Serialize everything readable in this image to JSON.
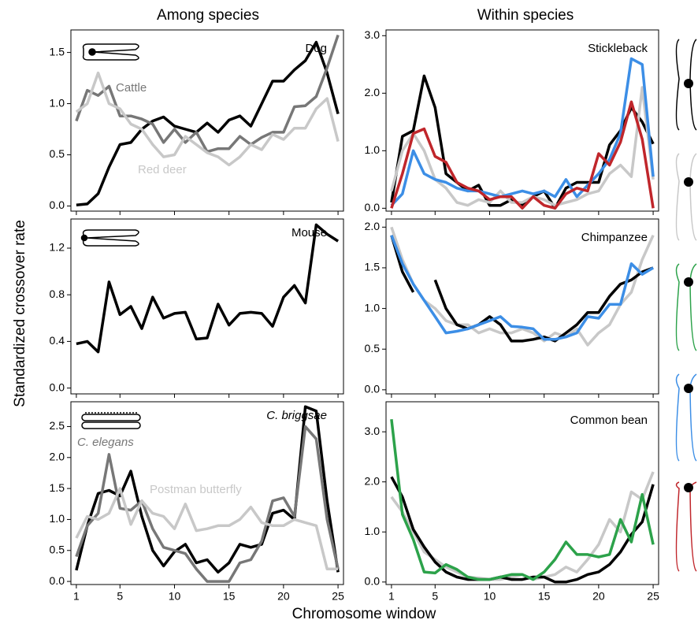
{
  "column_titles": [
    "Among species",
    "Within species"
  ],
  "y_label": "Standardized crossover rate",
  "x_label": "Chromosome window",
  "chart_data": [
    {
      "type": "line",
      "x": [
        1,
        2,
        3,
        4,
        5,
        6,
        7,
        8,
        9,
        10,
        11,
        12,
        13,
        14,
        15,
        16,
        17,
        18,
        19,
        20,
        21,
        22,
        23,
        24,
        25
      ],
      "xlim": [
        0.5,
        25.5
      ],
      "xticks": [
        1,
        5,
        10,
        15,
        20,
        25
      ],
      "ylim": [
        -0.05,
        1.72
      ],
      "yticks": [
        {
          "value": 0,
          "label": "0.0"
        },
        0.5,
        {
          "value": 1,
          "label": "1.0"
        },
        1.5
      ],
      "series": [
        {
          "name": "Dog",
          "color": "#000000",
          "values": [
            0.01,
            0.02,
            0.12,
            0.38,
            0.6,
            0.62,
            0.75,
            0.83,
            0.87,
            0.78,
            0.75,
            0.72,
            0.81,
            0.72,
            0.84,
            0.88,
            0.78,
            1.0,
            1.22,
            1.22,
            1.33,
            1.42,
            1.6,
            1.3,
            0.9
          ]
        },
        {
          "name": "Cattle",
          "color": "#777777",
          "values": [
            0.83,
            1.13,
            1.08,
            1.17,
            0.88,
            0.88,
            0.85,
            0.8,
            0.62,
            0.75,
            0.62,
            0.72,
            0.53,
            0.56,
            0.56,
            0.68,
            0.6,
            0.67,
            0.72,
            0.72,
            0.97,
            0.98,
            1.07,
            1.35,
            1.67
          ]
        },
        {
          "name": "Red deer",
          "color": "#c8c8c8",
          "values": [
            0.92,
            1.0,
            1.3,
            1.0,
            0.95,
            0.8,
            0.75,
            0.6,
            0.48,
            0.5,
            0.68,
            0.6,
            0.52,
            0.48,
            0.4,
            0.48,
            0.6,
            0.55,
            0.7,
            0.65,
            0.76,
            0.76,
            0.95,
            1.05,
            0.63
          ]
        }
      ]
    },
    {
      "type": "line",
      "x": [
        1,
        2,
        3,
        4,
        5,
        6,
        7,
        8,
        9,
        10,
        11,
        12,
        13,
        14,
        15,
        16,
        17,
        18,
        19,
        20,
        21,
        22,
        23,
        24,
        25
      ],
      "xlim": [
        0.5,
        25.5
      ],
      "xticks": [
        1,
        5,
        10,
        15,
        20,
        25
      ],
      "ylim": [
        -0.05,
        1.45
      ],
      "yticks": [
        {
          "value": 0,
          "label": "0.0"
        },
        0.4,
        0.8,
        1.2
      ],
      "series": [
        {
          "name": "Mouse",
          "color": "#000000",
          "values": [
            0.38,
            0.4,
            0.31,
            0.91,
            0.63,
            0.7,
            0.51,
            0.78,
            0.6,
            0.64,
            0.65,
            0.42,
            0.43,
            0.72,
            0.54,
            0.64,
            0.65,
            0.64,
            0.53,
            0.78,
            0.88,
            0.73,
            1.4,
            1.32,
            1.26
          ]
        }
      ]
    },
    {
      "type": "line",
      "x": [
        1,
        2,
        3,
        4,
        5,
        6,
        7,
        8,
        9,
        10,
        11,
        12,
        13,
        14,
        15,
        16,
        17,
        18,
        19,
        20,
        21,
        22,
        23,
        24,
        25
      ],
      "xlim": [
        0.5,
        25.5
      ],
      "xticks": [
        1,
        5,
        10,
        15,
        20,
        25
      ],
      "ylim": [
        -0.05,
        2.9
      ],
      "yticks": [
        {
          "value": 0,
          "label": "0.0"
        },
        0.5,
        {
          "value": 1,
          "label": "1.0"
        },
        1.5,
        {
          "value": 2,
          "label": "2.0"
        },
        2.5
      ],
      "series": [
        {
          "name": "C. briggsae",
          "color": "#000000",
          "values": [
            0.18,
            0.9,
            1.42,
            1.47,
            1.38,
            1.78,
            1.05,
            0.5,
            0.25,
            0.48,
            0.6,
            0.3,
            0.35,
            0.15,
            0.3,
            0.6,
            0.55,
            0.6,
            1.1,
            1.15,
            1.0,
            2.82,
            2.75,
            1.3,
            0.15
          ]
        },
        {
          "name": "C. elegans",
          "color": "#777777",
          "values": [
            0.4,
            0.9,
            1.1,
            2.05,
            1.18,
            1.15,
            1.3,
            0.85,
            0.55,
            0.5,
            0.45,
            0.2,
            0.0,
            0.0,
            0.0,
            0.3,
            0.35,
            0.65,
            1.3,
            1.35,
            1.05,
            2.5,
            2.3,
            1.0,
            0.2
          ]
        },
        {
          "name": "Postman butterfly",
          "color": "#c8c8c8",
          "values": [
            0.7,
            1.05,
            1.0,
            1.1,
            1.5,
            0.92,
            1.3,
            1.1,
            1.05,
            0.85,
            1.25,
            0.82,
            0.85,
            0.9,
            0.9,
            1.0,
            1.2,
            0.95,
            0.9,
            0.9,
            1.0,
            0.95,
            0.9,
            0.2,
            0.2
          ]
        }
      ]
    },
    {
      "type": "line",
      "title": "Stickleback",
      "x": [
        1,
        2,
        3,
        4,
        5,
        6,
        7,
        8,
        9,
        10,
        11,
        12,
        13,
        14,
        15,
        16,
        17,
        18,
        19,
        20,
        21,
        22,
        23,
        24,
        25
      ],
      "xlim": [
        0.5,
        25.5
      ],
      "xticks": [
        1,
        5,
        10,
        15,
        20,
        25
      ],
      "ylim": [
        -0.05,
        3.1
      ],
      "yticks": [
        {
          "value": 0,
          "label": "0.0"
        },
        {
          "value": 1,
          "label": "1.0"
        },
        {
          "value": 2,
          "label": "2.0"
        },
        {
          "value": 3,
          "label": "3.0"
        }
      ],
      "series": [
        {
          "color": "#000000",
          "values": [
            0.1,
            1.25,
            1.35,
            2.3,
            1.75,
            0.6,
            0.45,
            0.3,
            0.4,
            0.05,
            0.05,
            0.15,
            0.05,
            0.2,
            0.3,
            0.0,
            0.35,
            0.45,
            0.45,
            0.45,
            1.1,
            1.35,
            1.75,
            1.5,
            1.12
          ]
        },
        {
          "color": "#c8c8c8",
          "values": [
            0.3,
            1.0,
            1.3,
            1.0,
            0.5,
            0.35,
            0.1,
            0.05,
            0.15,
            0.1,
            0.3,
            0.1,
            0.1,
            0.2,
            0.15,
            0.05,
            0.1,
            0.15,
            0.25,
            0.3,
            0.6,
            0.75,
            0.55,
            2.1,
            0.5
          ]
        },
        {
          "color": "#3c8ee6",
          "values": [
            0.05,
            0.25,
            1.0,
            0.6,
            0.5,
            0.45,
            0.35,
            0.3,
            0.3,
            0.25,
            0.2,
            0.25,
            0.3,
            0.25,
            0.3,
            0.2,
            0.5,
            0.2,
            0.4,
            0.6,
            0.85,
            1.3,
            2.6,
            2.5,
            0.55
          ]
        },
        {
          "color": "#c0262b",
          "values": [
            0.0,
            0.6,
            1.3,
            1.38,
            0.9,
            0.8,
            0.45,
            0.35,
            0.3,
            0.15,
            0.2,
            0.2,
            0.0,
            0.2,
            0.05,
            0.0,
            0.25,
            0.35,
            0.3,
            0.95,
            0.75,
            1.15,
            1.85,
            1.2,
            0.0
          ]
        }
      ]
    },
    {
      "type": "line",
      "title": "Chimpanzee",
      "x": [
        1,
        2,
        3,
        4,
        5,
        6,
        7,
        8,
        9,
        10,
        11,
        12,
        13,
        14,
        15,
        16,
        17,
        18,
        19,
        20,
        21,
        22,
        23,
        24,
        25
      ],
      "xlim": [
        0.5,
        25.5
      ],
      "xticks": [
        1,
        5,
        10,
        15,
        20,
        25
      ],
      "ylim": [
        -0.05,
        2.1
      ],
      "yticks": [
        {
          "value": 0,
          "label": "0.0"
        },
        0.5,
        {
          "value": 1,
          "label": "1.0"
        },
        1.5,
        {
          "value": 2,
          "label": "2.0"
        }
      ],
      "series": [
        {
          "color": "#c8c8c8",
          "values": [
            2.0,
            1.6,
            1.3,
            1.1,
            1.0,
            0.85,
            0.8,
            0.8,
            0.7,
            0.75,
            0.7,
            0.7,
            0.75,
            0.7,
            0.6,
            0.7,
            0.65,
            0.75,
            0.55,
            0.7,
            0.8,
            1.05,
            1.2,
            1.6,
            1.9
          ]
        },
        {
          "color": "#000000",
          "values": [
            1.9,
            1.45,
            1.2,
            null,
            1.35,
            1.0,
            0.8,
            0.75,
            0.8,
            0.9,
            0.8,
            0.6,
            0.6,
            0.62,
            0.65,
            0.6,
            0.7,
            0.8,
            0.95,
            0.95,
            1.15,
            1.3,
            1.35,
            1.45,
            1.5
          ]
        },
        {
          "color": "#3c8ee6",
          "values": [
            1.9,
            1.55,
            1.3,
            1.1,
            0.9,
            0.7,
            0.72,
            0.75,
            0.8,
            0.85,
            0.9,
            0.78,
            0.77,
            0.75,
            0.62,
            0.62,
            0.65,
            0.7,
            0.9,
            0.88,
            1.05,
            1.05,
            1.55,
            1.42,
            1.5
          ]
        }
      ]
    },
    {
      "type": "line",
      "title": "Common bean",
      "x": [
        1,
        2,
        3,
        4,
        5,
        6,
        7,
        8,
        9,
        10,
        11,
        12,
        13,
        14,
        15,
        16,
        17,
        18,
        19,
        20,
        21,
        22,
        23,
        24,
        25
      ],
      "xlim": [
        0.5,
        25.5
      ],
      "xticks": [
        1,
        5,
        10,
        15,
        20,
        25
      ],
      "ylim": [
        -0.05,
        3.6
      ],
      "yticks": [
        {
          "value": 0,
          "label": "0.0"
        },
        {
          "value": 1,
          "label": "1.0"
        },
        {
          "value": 2,
          "label": "2.0"
        },
        {
          "value": 3,
          "label": "3.0"
        }
      ],
      "series": [
        {
          "color": "#c8c8c8",
          "values": [
            1.7,
            1.4,
            1.0,
            0.6,
            0.45,
            0.3,
            0.2,
            0.1,
            0.08,
            0.05,
            0.05,
            0.1,
            0.15,
            0.05,
            0.1,
            0.15,
            0.3,
            0.2,
            0.45,
            0.75,
            1.25,
            1.0,
            1.8,
            1.65,
            2.2
          ]
        },
        {
          "color": "#000000",
          "values": [
            2.1,
            1.7,
            1.05,
            0.7,
            0.4,
            0.2,
            0.1,
            0.05,
            0.05,
            0.05,
            0.1,
            0.05,
            0.05,
            0.1,
            0.1,
            0.0,
            0.0,
            0.05,
            0.15,
            0.2,
            0.35,
            0.6,
            0.95,
            1.2,
            1.95
          ]
        },
        {
          "color": "#2ca24a",
          "values": [
            3.25,
            1.35,
            0.85,
            0.2,
            0.18,
            0.35,
            0.25,
            0.1,
            0.05,
            0.05,
            0.1,
            0.15,
            0.15,
            0.05,
            0.2,
            0.45,
            0.8,
            0.55,
            0.55,
            0.5,
            0.55,
            1.25,
            0.8,
            1.75,
            0.75
          ]
        }
      ]
    }
  ]
}
